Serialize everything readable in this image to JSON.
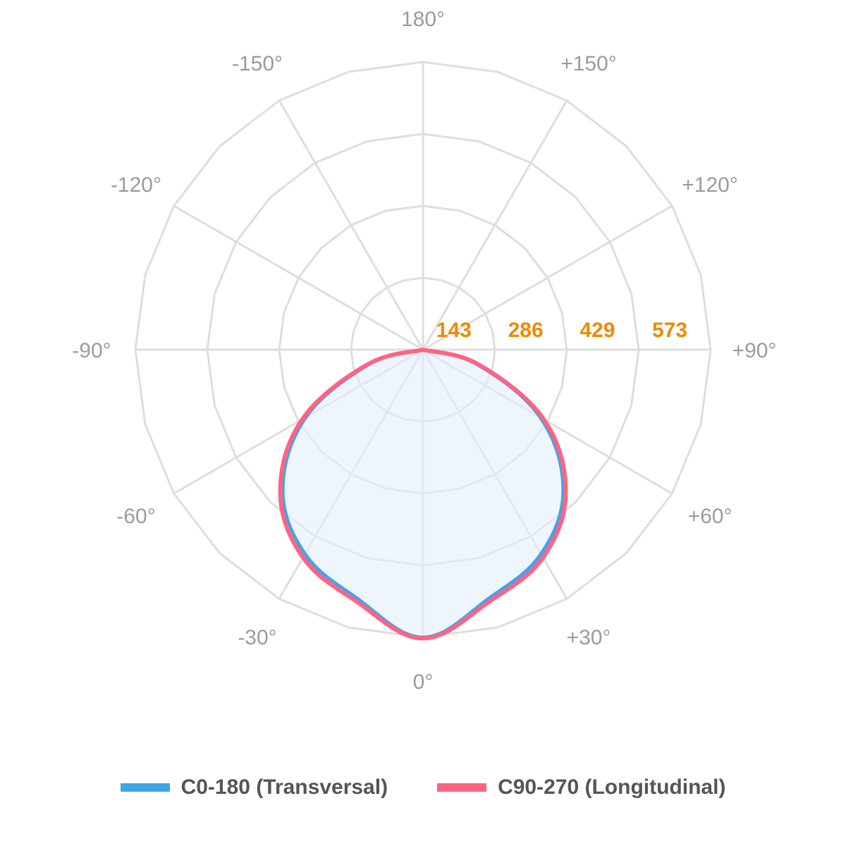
{
  "chart_data": {
    "type": "polar-line",
    "angle_labels": [
      {
        "angle": 0,
        "text": "0°"
      },
      {
        "angle": 30,
        "text": "+30°"
      },
      {
        "angle": 60,
        "text": "+60°"
      },
      {
        "angle": 90,
        "text": "+90°"
      },
      {
        "angle": 120,
        "text": "+120°"
      },
      {
        "angle": 150,
        "text": "+150°"
      },
      {
        "angle": 180,
        "text": "180°"
      },
      {
        "angle": -150,
        "text": "-150°"
      },
      {
        "angle": -120,
        "text": "-120°"
      },
      {
        "angle": -90,
        "text": "-90°"
      },
      {
        "angle": -60,
        "text": "-60°"
      },
      {
        "angle": -30,
        "text": "-30°"
      }
    ],
    "radial_ticks": [
      143,
      286,
      429,
      573
    ],
    "rmax": 573,
    "grid": true,
    "legend_position": "bottom",
    "series": [
      {
        "name": "C0-180 (Transversal)",
        "color": "#3ea6e8",
        "fill": "#e3eefa",
        "angles": [
          -90,
          -75,
          -60,
          -45,
          -30,
          -15,
          0,
          15,
          30,
          45,
          60,
          75,
          90
        ],
        "values": [
          0,
          110,
          270,
          395,
          470,
          512,
          573,
          512,
          470,
          395,
          270,
          110,
          0
        ]
      },
      {
        "name": "C90-270 (Longitudinal)",
        "color": "#ff6384",
        "angles": [
          -90,
          -75,
          -60,
          -45,
          -30,
          -15,
          0,
          15,
          30,
          45,
          60,
          75,
          90
        ],
        "values": [
          0,
          115,
          278,
          402,
          478,
          518,
          575,
          518,
          478,
          402,
          278,
          115,
          0
        ]
      }
    ]
  }
}
